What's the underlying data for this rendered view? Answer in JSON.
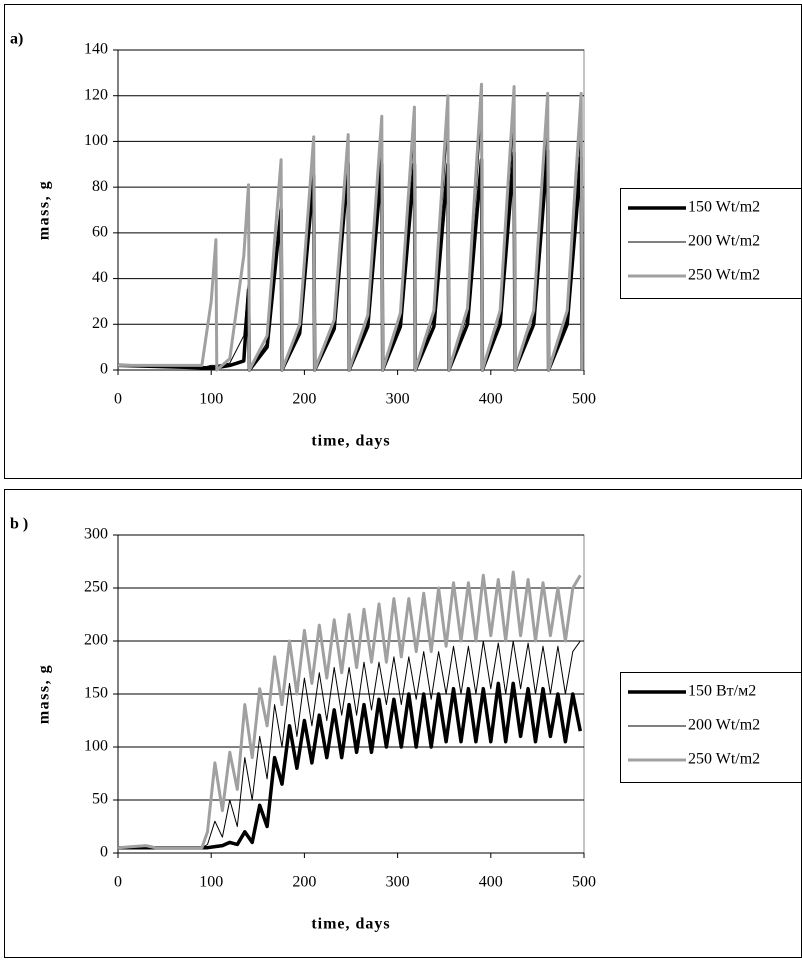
{
  "chart_data": [
    {
      "type": "line",
      "title": "a)",
      "xlabel": "time, days",
      "ylabel": "mass, g",
      "xlim": [
        0,
        500
      ],
      "xticks": [
        0,
        100,
        200,
        300,
        400,
        500
      ],
      "ylim": [
        0,
        140
      ],
      "yticks": [
        0,
        20,
        40,
        60,
        80,
        100,
        120,
        140
      ],
      "grid": true,
      "legend": "right",
      "x": [
        0,
        90,
        100,
        105,
        106,
        120,
        135,
        140,
        141,
        160,
        175,
        176,
        195,
        210,
        211,
        232,
        247,
        248,
        268,
        283,
        284,
        303,
        318,
        319,
        339,
        354,
        355,
        375,
        390,
        391,
        410,
        425,
        426,
        446,
        461,
        462,
        482,
        497,
        498
      ],
      "series": [
        {
          "name": "150 Wt/m2",
          "color": "#000000",
          "width": 3.5,
          "values": [
            2,
            1,
            1,
            1,
            1,
            2,
            4,
            35,
            0,
            10,
            70,
            0,
            16,
            85,
            0,
            18,
            90,
            0,
            19,
            90,
            0,
            19,
            90,
            0,
            19,
            90,
            0,
            20,
            92,
            0,
            20,
            95,
            0,
            20,
            96,
            0,
            20,
            93,
            0
          ]
        },
        {
          "name": "200 Wt/m2",
          "color": "#000000",
          "width": 1,
          "values": [
            2,
            1,
            2,
            2,
            2,
            3,
            15,
            40,
            0,
            12,
            75,
            0,
            18,
            88,
            0,
            20,
            95,
            0,
            21,
            100,
            0,
            22,
            105,
            0,
            23,
            108,
            0,
            24,
            112,
            0,
            24,
            110,
            0,
            24,
            108,
            0,
            23,
            105,
            0
          ]
        },
        {
          "name": "250 Wt/m2",
          "color": "#a0a0a0",
          "width": 3,
          "values": [
            2,
            2,
            30,
            57,
            0,
            5,
            50,
            81,
            0,
            15,
            92,
            0,
            20,
            102,
            0,
            22,
            103,
            0,
            24,
            111,
            0,
            25,
            115,
            0,
            26,
            120,
            0,
            27,
            125,
            0,
            26,
            124,
            0,
            26,
            121,
            0,
            26,
            121,
            0
          ]
        }
      ]
    },
    {
      "type": "line",
      "title": "b )",
      "xlabel": "time, days",
      "ylabel": "mass, g",
      "xlim": [
        0,
        500
      ],
      "xticks": [
        0,
        100,
        200,
        300,
        400,
        500
      ],
      "ylim": [
        0,
        300
      ],
      "yticks": [
        0,
        50,
        100,
        150,
        200,
        250,
        300
      ],
      "grid": true,
      "legend": "right",
      "x": [
        0,
        30,
        40,
        90,
        96,
        104,
        112,
        120,
        128,
        136,
        144,
        152,
        160,
        168,
        176,
        184,
        192,
        200,
        208,
        216,
        224,
        232,
        240,
        248,
        256,
        264,
        272,
        280,
        288,
        296,
        304,
        312,
        320,
        328,
        336,
        344,
        352,
        360,
        368,
        376,
        384,
        392,
        400,
        408,
        416,
        424,
        432,
        440,
        448,
        456,
        464,
        472,
        480,
        488,
        496
      ],
      "series": [
        {
          "name": "150 Вт/м2",
          "color": "#000000",
          "width": 3.5,
          "values": [
            5,
            5,
            5,
            5,
            5,
            6,
            7,
            10,
            8,
            20,
            10,
            45,
            25,
            90,
            65,
            120,
            80,
            125,
            85,
            130,
            90,
            135,
            90,
            140,
            95,
            140,
            95,
            145,
            100,
            145,
            100,
            150,
            100,
            150,
            100,
            150,
            105,
            155,
            105,
            155,
            105,
            155,
            105,
            160,
            105,
            160,
            110,
            155,
            105,
            155,
            110,
            150,
            105,
            150,
            115
          ]
        },
        {
          "name": "200 Wt/m2",
          "color": "#000000",
          "width": 1,
          "values": [
            5,
            6,
            5,
            5,
            8,
            30,
            15,
            50,
            25,
            90,
            50,
            110,
            70,
            140,
            100,
            160,
            110,
            165,
            120,
            170,
            125,
            175,
            130,
            175,
            130,
            180,
            135,
            180,
            140,
            185,
            140,
            185,
            145,
            190,
            145,
            190,
            150,
            195,
            150,
            195,
            150,
            200,
            155,
            198,
            150,
            200,
            155,
            198,
            150,
            195,
            150,
            195,
            150,
            190,
            200
          ]
        },
        {
          "name": "250 Wt/m2",
          "color": "#a0a0a0",
          "width": 3,
          "values": [
            5,
            7,
            5,
            5,
            20,
            85,
            40,
            95,
            60,
            140,
            90,
            155,
            120,
            185,
            140,
            200,
            150,
            210,
            160,
            215,
            165,
            220,
            170,
            225,
            175,
            230,
            180,
            235,
            180,
            240,
            185,
            240,
            190,
            245,
            190,
            250,
            195,
            255,
            200,
            255,
            200,
            262,
            205,
            258,
            200,
            265,
            205,
            258,
            200,
            255,
            205,
            250,
            200,
            250,
            262
          ]
        }
      ]
    }
  ]
}
